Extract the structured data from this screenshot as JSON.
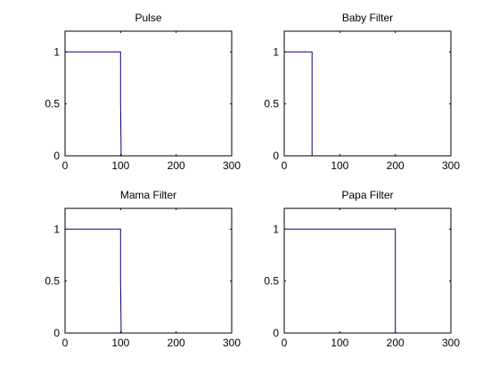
{
  "chart_data": [
    {
      "type": "line",
      "title": "Pulse",
      "xlim": [
        0,
        300
      ],
      "ylim": [
        0,
        1.2
      ],
      "xticks": [
        0,
        100,
        200,
        300
      ],
      "yticks": [
        0,
        0.5,
        1
      ],
      "xtick_labels": [
        "0",
        "100",
        "200",
        "300"
      ],
      "ytick_labels": [
        "0",
        "0.5",
        "1"
      ],
      "grid": false,
      "series": [
        {
          "x": [
            0,
            100,
            100,
            101
          ],
          "y": [
            1,
            1,
            0.5,
            0
          ]
        }
      ]
    },
    {
      "type": "line",
      "title": "Baby Filter",
      "xlim": [
        0,
        300
      ],
      "ylim": [
        0,
        1.2
      ],
      "xticks": [
        0,
        100,
        200,
        300
      ],
      "yticks": [
        0,
        0.5,
        1
      ],
      "xtick_labels": [
        "0",
        "100",
        "200",
        "300"
      ],
      "ytick_labels": [
        "0",
        "0.5",
        "1"
      ],
      "grid": false,
      "series": [
        {
          "x": [
            0,
            50,
            50
          ],
          "y": [
            1,
            1,
            0
          ]
        }
      ]
    },
    {
      "type": "line",
      "title": "Mama Filter",
      "xlim": [
        0,
        300
      ],
      "ylim": [
        0,
        1.2
      ],
      "xticks": [
        0,
        100,
        200,
        300
      ],
      "yticks": [
        0,
        0.5,
        1
      ],
      "xtick_labels": [
        "0",
        "100",
        "200",
        "300"
      ],
      "ytick_labels": [
        "0",
        "0.5",
        "1"
      ],
      "grid": false,
      "series": [
        {
          "x": [
            0,
            100,
            100,
            101
          ],
          "y": [
            1,
            1,
            0.5,
            0
          ]
        }
      ]
    },
    {
      "type": "line",
      "title": "Papa Filter",
      "xlim": [
        0,
        300
      ],
      "ylim": [
        0,
        1.2
      ],
      "xticks": [
        0,
        100,
        200,
        300
      ],
      "yticks": [
        0,
        0.5,
        1
      ],
      "xtick_labels": [
        "0",
        "100",
        "200",
        "300"
      ],
      "ytick_labels": [
        "0",
        "0.5",
        "1"
      ],
      "grid": false,
      "series": [
        {
          "x": [
            0,
            200,
            200
          ],
          "y": [
            1,
            1,
            0
          ]
        }
      ]
    }
  ],
  "colors": {
    "line": "#000080",
    "axes": "#000000",
    "background": "#ffffff"
  }
}
